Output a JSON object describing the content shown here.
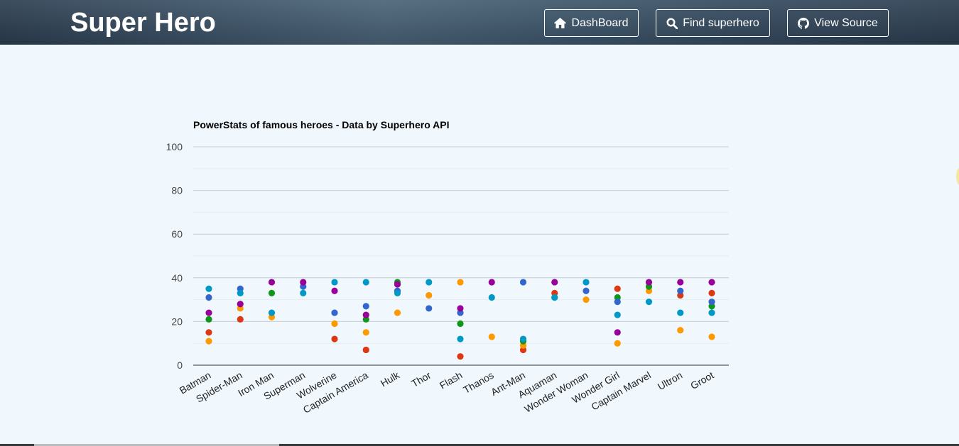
{
  "header": {
    "title": "Super Hero",
    "nav": [
      {
        "label": "DashBoard",
        "icon": "home-icon"
      },
      {
        "label": "Find superhero",
        "icon": "search-icon"
      },
      {
        "label": "View Source",
        "icon": "github-icon"
      }
    ]
  },
  "chart_data": {
    "type": "scatter",
    "title": "PowerStats of famous heroes - Data by Superhero API",
    "xlabel": "",
    "ylabel": "",
    "ylim": [
      0,
      100
    ],
    "yticks": [
      0,
      20,
      40,
      60,
      80,
      100
    ],
    "grid": true,
    "legend": "none",
    "categories": [
      "Batman",
      "Spider-Man",
      "Iron Man",
      "Superman",
      "Wolverine",
      "Captain America",
      "Hulk",
      "Thor",
      "Flash",
      "Thanos",
      "Ant-Man",
      "Aquaman",
      "Wonder Woman",
      "Wonder Girl",
      "Captain Marvel",
      "Ultron",
      "Groot"
    ],
    "series": [
      {
        "color": "#dc3912",
        "values": [
          15,
          21,
          null,
          null,
          12,
          7,
          null,
          null,
          4,
          null,
          7,
          33,
          null,
          35,
          null,
          32,
          33
        ]
      },
      {
        "color": "#ff9900",
        "values": [
          11,
          26,
          22,
          null,
          19,
          15,
          24,
          32,
          38,
          13,
          9,
          null,
          30,
          10,
          34,
          16,
          13
        ]
      },
      {
        "color": "#109618",
        "values": [
          21,
          null,
          33,
          null,
          null,
          21,
          38,
          null,
          19,
          null,
          11,
          31,
          null,
          31,
          36,
          null,
          27
        ]
      },
      {
        "color": "#3366cc",
        "values": [
          31,
          35,
          null,
          36,
          24,
          27,
          34,
          26,
          24,
          null,
          38,
          null,
          34,
          29,
          null,
          34,
          29
        ]
      },
      {
        "color": "#990099",
        "values": [
          24,
          28,
          38,
          38,
          34,
          23,
          37,
          null,
          26,
          38,
          null,
          38,
          null,
          15,
          38,
          38,
          38
        ]
      },
      {
        "color": "#0099c6",
        "values": [
          35,
          33,
          24,
          33,
          38,
          38,
          33,
          38,
          12,
          31,
          12,
          31,
          38,
          23,
          29,
          24,
          24
        ]
      }
    ]
  }
}
